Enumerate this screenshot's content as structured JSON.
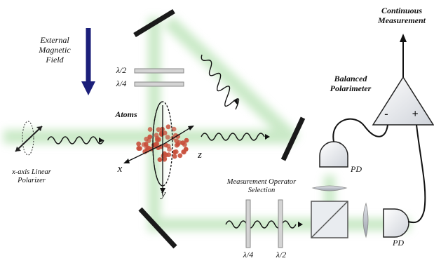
{
  "labels": {
    "external_field": [
      "External",
      "Magnetic",
      "Field"
    ],
    "half_wave_top": "λ/2",
    "quarter_wave_top": "λ/4",
    "atoms": "Atoms",
    "x_polarizer": [
      "x-axis Linear",
      "Polarizer"
    ],
    "axis_x": "x",
    "axis_y": "y",
    "axis_z": "z",
    "measurement_selection": [
      "Measurement Operator",
      "Selection"
    ],
    "quarter_wave_bottom": "λ/4",
    "half_wave_bottom": "λ/2",
    "pd_top": "PD",
    "pd_right": "PD",
    "balanced_polarimeter": [
      "Balanced",
      "Polarimeter"
    ],
    "continuous_measurement": [
      "Continuous",
      "Measurement"
    ],
    "amp_minus": "-",
    "amp_plus": "+"
  },
  "colors": {
    "beam": "#9fd89a",
    "field_arrow": "#1b1f7a",
    "atom": "#c8503c",
    "mirror": "#1a1a1a",
    "waveplate": "#b0b0b0"
  },
  "atom_count": 60
}
